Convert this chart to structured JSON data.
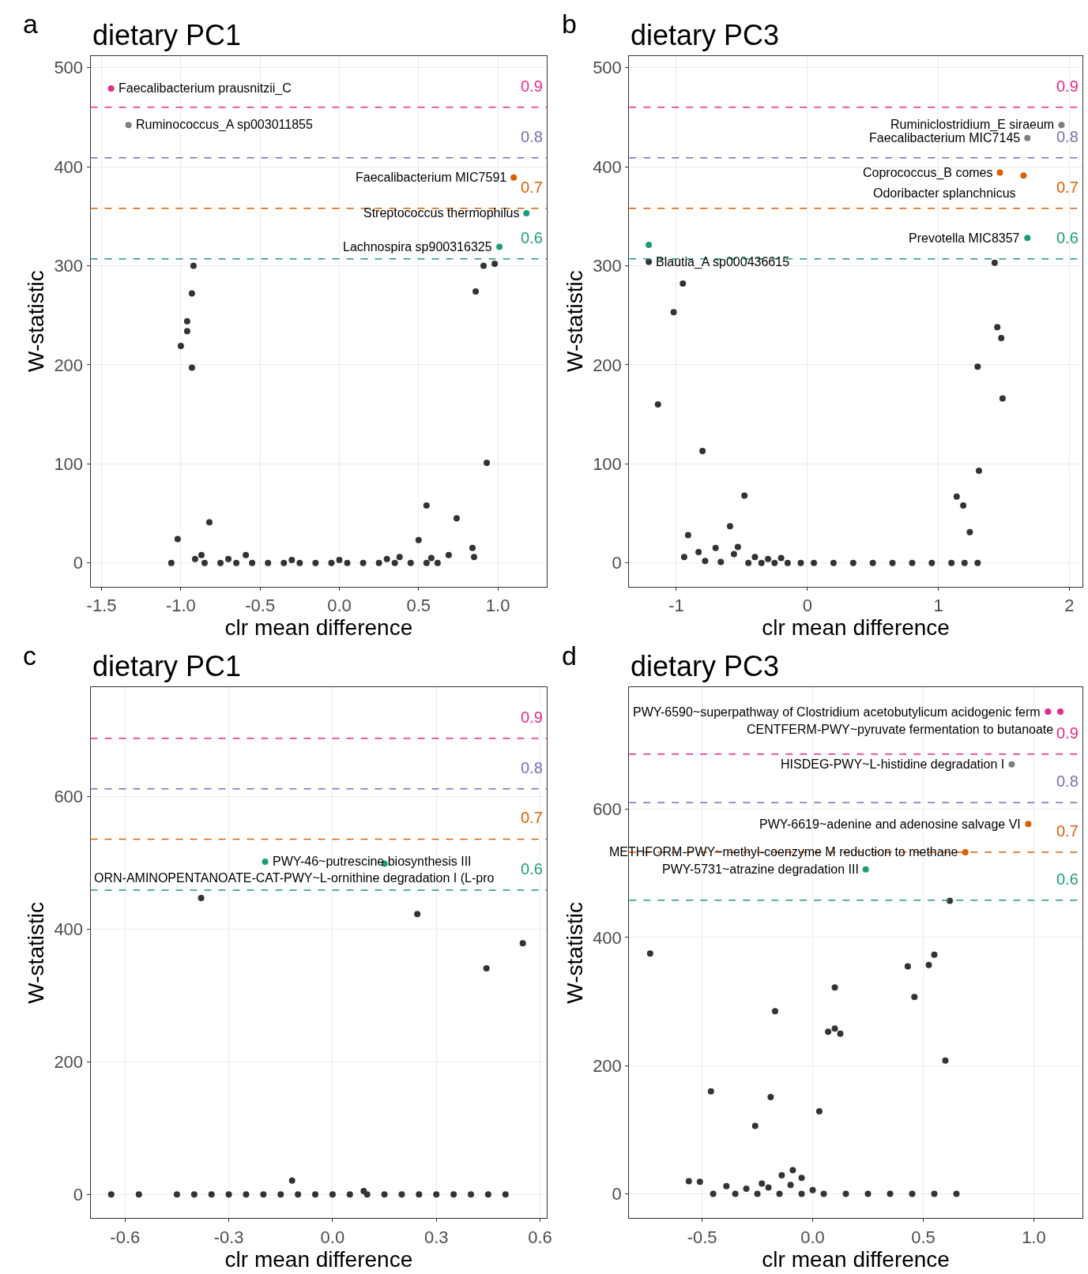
{
  "chart_data": [
    {
      "type": "scatter",
      "title": "dietary PC1",
      "xlabel": "clr mean difference",
      "ylabel": "W-statistic",
      "grid": true,
      "marker": "circle",
      "xlim": [
        -1.57,
        1.31
      ],
      "ylim": [
        -24,
        512
      ],
      "xticks": [
        -1.5,
        {
          "value": -1,
          "label": "-1.0"
        },
        {
          "value": -0.5,
          "label": "-0.5"
        },
        {
          "value": 0,
          "label": "0.0"
        },
        0.5,
        {
          "value": 1,
          "label": "1.0"
        }
      ],
      "yticks": [
        0,
        100,
        200,
        300,
        400,
        500
      ],
      "series": [
        {
          "color": "#333333",
          "x": [
            -0.92,
            -0.93,
            -0.96,
            -0.96,
            -1.0,
            -0.93,
            0.91,
            0.98,
            0.86,
            0.93,
            0.55,
            0.74,
            -0.82,
            -1.02,
            0.84,
            0.85,
            0.5,
            -1.06,
            -0.87,
            -0.91,
            -0.59,
            0.69,
            0.38,
            -0.85,
            -0.75,
            -0.65,
            -0.55,
            -0.45,
            -0.35,
            -0.25,
            -0.15,
            -0.05,
            0.05,
            0.15,
            0.25,
            0.35,
            0.45,
            0.55,
            0.62,
            -0.7,
            -0.3,
            0.0,
            0.3,
            0.58
          ],
          "values": [
            300,
            272,
            244,
            234,
            219,
            197,
            300,
            302,
            274,
            101,
            58,
            45,
            41,
            24,
            15,
            6,
            23,
            0,
            8,
            4,
            8,
            8,
            6,
            0,
            0,
            0,
            0,
            0,
            0,
            0,
            0,
            0,
            0,
            0,
            0,
            0,
            0,
            0,
            0,
            4,
            3,
            3,
            4,
            5
          ]
        },
        {
          "color": "#e7298a",
          "x": [
            -1.44
          ],
          "values": [
            479
          ]
        },
        {
          "color": "#7f7f7f",
          "x": [
            -1.33
          ],
          "values": [
            442
          ]
        },
        {
          "color": "#d95f02",
          "x": [
            1.1
          ],
          "values": [
            389
          ]
        },
        {
          "color": "#1b9e77",
          "x": [
            1.18,
            1.01
          ],
          "values": [
            353,
            319
          ]
        }
      ],
      "ref_lines": [
        {
          "axis": "y",
          "value": 460,
          "color": "#e7298a",
          "line_style": "dashed"
        },
        {
          "axis": "y",
          "value": 409,
          "color": "#7570b3",
          "line_style": "dashed"
        },
        {
          "axis": "y",
          "value": 358,
          "color": "#d95f02",
          "line_style": "dashed"
        },
        {
          "axis": "y",
          "value": 307,
          "color": "#1b9e77",
          "line_style": "dashed"
        }
      ],
      "annotations": [
        "a",
        "0.9",
        "0.8",
        "0.7",
        "0.6",
        {
          "text": "Faecalibacterium prausnitzii_C",
          "x": -1.44,
          "y": 479
        },
        {
          "text": "Ruminococcus_A sp003011855",
          "x": -1.33,
          "y": 442
        },
        {
          "text": "Faecalibacterium MIC7591",
          "x": 1.1,
          "y": 389
        },
        {
          "text": "Streptococcus thermophilus",
          "x": 1.18,
          "y": 353
        },
        {
          "text": "Lachnospira sp900316325",
          "x": 1.01,
          "y": 319
        }
      ]
    },
    {
      "type": "scatter",
      "title": "dietary PC3",
      "xlabel": "clr mean difference",
      "ylabel": "W-statistic",
      "grid": true,
      "marker": "circle",
      "xlim": [
        -1.36,
        2.1
      ],
      "ylim": [
        -24,
        512
      ],
      "xticks": [
        -1,
        0,
        1,
        2
      ],
      "yticks": [
        0,
        100,
        200,
        300,
        400,
        500
      ],
      "series": [
        {
          "color": "#333333",
          "x": [
            -1.21,
            -0.95,
            -1.02,
            -1.14,
            -0.8,
            -0.48,
            -0.59,
            -0.91,
            -0.94,
            1.43,
            1.45,
            1.48,
            1.3,
            1.49,
            1.31,
            1.14,
            1.19,
            1.24,
            -0.83,
            -0.78,
            -0.66,
            -0.53,
            -0.7,
            -0.56,
            -0.45,
            -0.35,
            -0.25,
            -0.15,
            -0.05,
            0.05,
            0.2,
            0.35,
            0.5,
            0.65,
            0.8,
            0.95,
            1.1,
            1.2,
            1.3,
            -0.4,
            -0.3,
            -0.2
          ],
          "values": [
            304,
            282,
            253,
            160,
            113,
            68,
            37,
            28,
            6,
            303,
            238,
            227,
            198,
            166,
            93,
            67,
            58,
            31,
            11,
            2,
            1,
            16,
            15,
            9,
            0,
            0,
            0,
            0,
            0,
            0,
            0,
            0,
            0,
            0,
            0,
            0,
            0,
            0,
            0,
            6,
            4,
            5
          ]
        },
        {
          "color": "#7f7f7f",
          "x": [
            1.94,
            1.68
          ],
          "values": [
            442,
            429
          ]
        },
        {
          "color": "#d95f02",
          "x": [
            1.47,
            1.65
          ],
          "values": [
            394,
            391
          ]
        },
        {
          "color": "#1b9e77",
          "x": [
            1.68,
            -1.21
          ],
          "values": [
            328,
            321
          ]
        }
      ],
      "ref_lines": [
        {
          "axis": "y",
          "value": 460,
          "color": "#e7298a",
          "line_style": "dashed"
        },
        {
          "axis": "y",
          "value": 409,
          "color": "#7570b3",
          "line_style": "dashed"
        },
        {
          "axis": "y",
          "value": 358,
          "color": "#d95f02",
          "line_style": "dashed"
        },
        {
          "axis": "y",
          "value": 307,
          "color": "#1b9e77",
          "line_style": "dashed"
        }
      ],
      "annotations": [
        "b",
        "0.9",
        "0.8",
        "0.7",
        "0.6",
        {
          "text": "Ruminiclostridium_E siraeum",
          "x": 1.94,
          "y": 442
        },
        {
          "text": "Faecalibacterium MIC7145",
          "x": 1.68,
          "y": 429
        },
        {
          "text": "Coprococcus_B comes",
          "x": 1.47,
          "y": 394
        },
        {
          "text": "Odoribacter splanchnicus",
          "x": 1.65,
          "y": 391
        },
        {
          "text": "Prevotella MIC8357",
          "x": 1.68,
          "y": 328
        },
        {
          "text": "Blautia_A sp000436615",
          "x": -1.21,
          "y": 321
        }
      ]
    },
    {
      "type": "scatter",
      "title": "dietary PC1",
      "xlabel": "clr mean difference",
      "ylabel": "W-statistic",
      "grid": true,
      "marker": "circle",
      "xlim": [
        -0.7,
        0.62
      ],
      "ylim": [
        -36,
        765
      ],
      "xticks": [
        -0.6,
        -0.3,
        {
          "value": 0,
          "label": "0.0"
        },
        0.3,
        0.6
      ],
      "yticks": [
        0,
        200,
        400,
        600
      ],
      "series": [
        {
          "color": "#333333",
          "x": [
            -0.38,
            0.245,
            0.55,
            0.445,
            -0.117,
            0.09,
            -0.64,
            -0.56,
            -0.45,
            -0.4,
            -0.35,
            -0.3,
            -0.25,
            -0.2,
            -0.15,
            -0.1,
            -0.05,
            0.0,
            0.05,
            0.1,
            0.15,
            0.2,
            0.25,
            0.3,
            0.35,
            0.4,
            0.45,
            0.5
          ],
          "values": [
            447,
            423,
            379,
            341,
            21,
            5,
            0,
            0,
            0,
            0,
            0,
            0,
            0,
            0,
            0,
            0,
            0,
            0,
            0,
            0,
            0,
            0,
            0,
            0,
            0,
            0,
            0,
            0
          ]
        },
        {
          "color": "#1b9e77",
          "x": [
            -0.195,
            0.15
          ],
          "values": [
            502,
            499
          ]
        }
      ],
      "ref_lines": [
        {
          "axis": "y",
          "value": 688,
          "color": "#e7298a",
          "line_style": "dashed"
        },
        {
          "axis": "y",
          "value": 612,
          "color": "#7570b3",
          "line_style": "dashed"
        },
        {
          "axis": "y",
          "value": 536,
          "color": "#d95f02",
          "line_style": "dashed"
        },
        {
          "axis": "y",
          "value": 459,
          "color": "#1b9e77",
          "line_style": "dashed"
        }
      ],
      "annotations": [
        "c",
        "0.9",
        "0.8",
        "0.7",
        "0.6",
        {
          "text": "PWY-46~putrescine biosynthesis III",
          "x": -0.195,
          "y": 502
        },
        {
          "text": "ORN-AMINOPENTANOATE-CAT-PWY~L-ornithine degradation I (L-pro",
          "x": 0.15,
          "y": 499
        }
      ]
    },
    {
      "type": "scatter",
      "title": "dietary PC3",
      "xlabel": "clr mean difference",
      "ylabel": "W-statistic",
      "grid": true,
      "marker": "circle",
      "xlim": [
        -0.83,
        1.22
      ],
      "ylim": [
        -38,
        790
      ],
      "xticks": [
        -0.5,
        {
          "value": 0,
          "label": "0.0"
        },
        0.5,
        {
          "value": 1,
          "label": "1.0"
        }
      ],
      "yticks": [
        0,
        200,
        400,
        600
      ],
      "series": [
        {
          "color": "#333333",
          "x": [
            0.62,
            -0.735,
            0.43,
            0.55,
            0.525,
            0.46,
            0.1,
            -0.17,
            0.07,
            0.1,
            0.125,
            0.6,
            -0.46,
            -0.19,
            0.03,
            -0.26,
            -0.56,
            -0.09,
            -0.14,
            -0.05,
            -0.23,
            -0.39,
            -0.51,
            -0.45,
            -0.35,
            -0.25,
            -0.15,
            -0.05,
            0.05,
            0.15,
            0.25,
            0.35,
            0.45,
            0.55,
            0.65,
            -0.3,
            -0.2,
            -0.1,
            0.0
          ],
          "values": [
            457,
            375,
            355,
            373,
            357,
            307,
            322,
            285,
            253,
            258,
            250,
            208,
            160,
            151,
            129,
            106,
            20,
            37,
            29,
            25,
            16,
            12,
            19,
            0,
            0,
            0,
            0,
            0,
            0,
            0,
            0,
            0,
            0,
            0,
            0,
            8,
            10,
            14,
            6
          ]
        },
        {
          "color": "#e7298a",
          "x": [
            1.064,
            1.12
          ],
          "values": [
            752,
            752
          ]
        },
        {
          "color": "#7f7f7f",
          "x": [
            0.9
          ],
          "values": [
            670
          ]
        },
        {
          "color": "#d95f02",
          "x": [
            0.975,
            0.69
          ],
          "values": [
            577,
            533
          ]
        },
        {
          "color": "#1b9e77",
          "x": [
            0.24
          ],
          "values": [
            506
          ]
        }
      ],
      "ref_lines": [
        {
          "axis": "y",
          "value": 686,
          "color": "#e7298a",
          "line_style": "dashed"
        },
        {
          "axis": "y",
          "value": 610,
          "color": "#7570b3",
          "line_style": "dashed"
        },
        {
          "axis": "y",
          "value": 533,
          "color": "#d95f02",
          "line_style": "dashed"
        },
        {
          "axis": "y",
          "value": 458,
          "color": "#1b9e77",
          "line_style": "dashed"
        }
      ],
      "annotations": [
        "d",
        "0.9",
        "0.8",
        "0.7",
        "0.6",
        {
          "text": "PWY-6590~superpathway of Clostridium acetobutylicum acidogenic ferm",
          "x": 1.064,
          "y": 752
        },
        {
          "text": "CENTFERM-PWY~pyruvate fermentation to butanoate",
          "x": 1.12,
          "y": 752
        },
        {
          "text": "HISDEG-PWY~L-histidine degradation I",
          "x": 0.9,
          "y": 670
        },
        {
          "text": "PWY-6619~adenine and adenosine salvage VI",
          "x": 0.975,
          "y": 577
        },
        {
          "text": "METHFORM-PWY~methyl-coenzyme M reduction to methane",
          "x": 0.69,
          "y": 533
        },
        {
          "text": "PWY-5731~atrazine degradation III",
          "x": 0.24,
          "y": 506
        }
      ]
    }
  ]
}
